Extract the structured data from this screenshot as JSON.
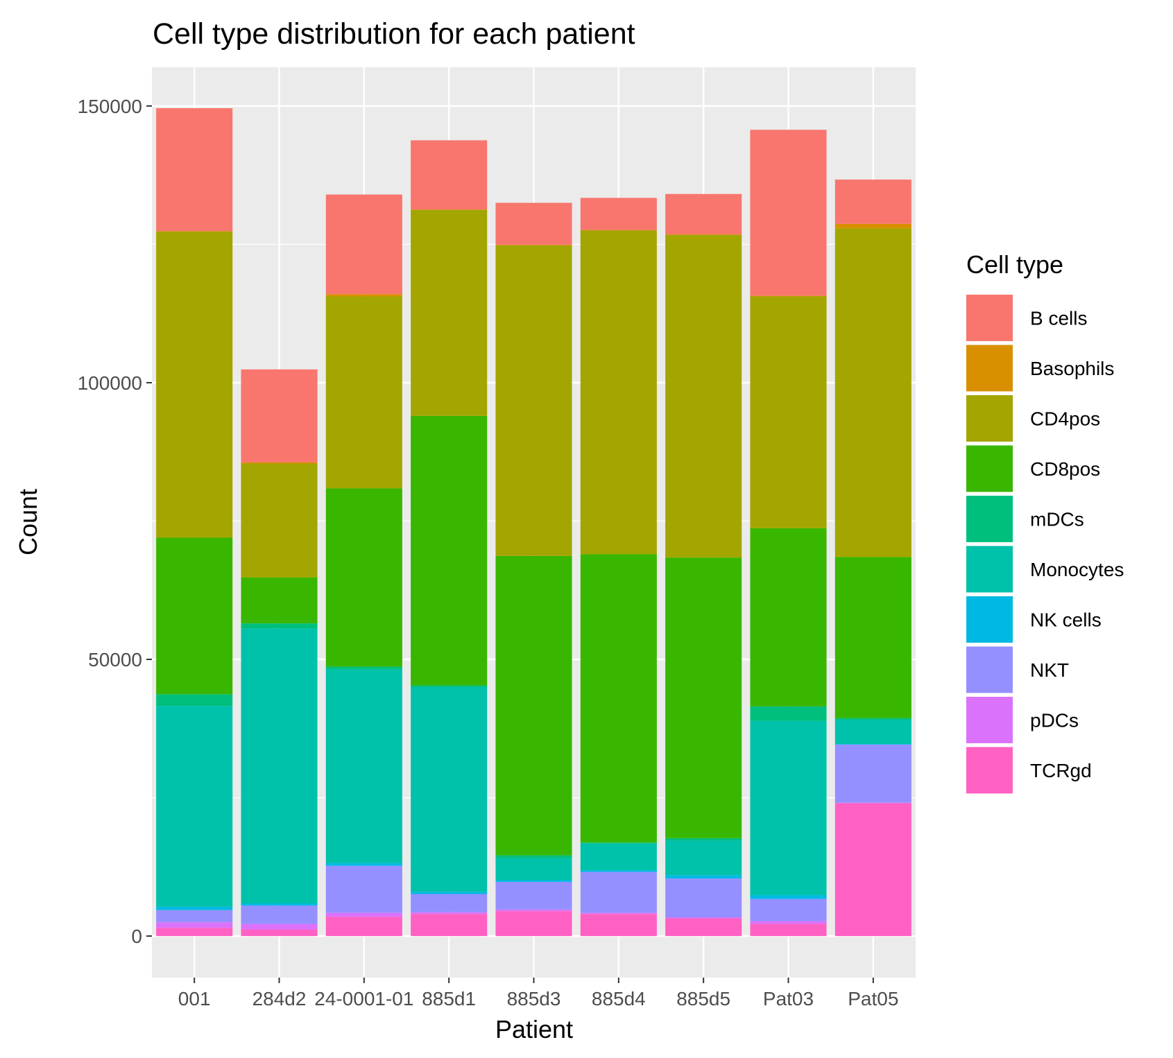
{
  "chart_data": {
    "type": "bar",
    "stacked": true,
    "title": "Cell type distribution for each patient",
    "xlabel": "Patient",
    "ylabel": "Count",
    "ylim": [
      -7500,
      157000
    ],
    "yticks": [
      "0",
      "50000",
      "100000",
      "150000"
    ],
    "ytick_values": [
      0,
      50000,
      100000,
      150000
    ],
    "grid": true,
    "legend_position": "right",
    "legend_title": "Cell type",
    "categories": [
      "001",
      "284d2",
      "24-0001-01",
      "885d1",
      "885d3",
      "885d4",
      "885d5",
      "Pat03",
      "Pat05"
    ],
    "series": [
      {
        "name": "TCRgd",
        "color": "#FF61C3",
        "values": [
          1500,
          1200,
          3500,
          4000,
          4500,
          4000,
          3200,
          2200,
          24000
        ]
      },
      {
        "name": "pDCs",
        "color": "#DB72FB",
        "values": [
          1000,
          1000,
          700,
          300,
          300,
          200,
          200,
          500,
          100
        ]
      },
      {
        "name": "NKT",
        "color": "#9590FF",
        "values": [
          2200,
          3300,
          8500,
          3300,
          5000,
          7400,
          7000,
          4000,
          10500
        ]
      },
      {
        "name": "NK cells",
        "color": "#00B9E3",
        "values": [
          600,
          400,
          500,
          400,
          300,
          300,
          600,
          700,
          100
        ]
      },
      {
        "name": "Monocytes",
        "color": "#00C1A9",
        "values": [
          36300,
          49700,
          35000,
          37000,
          4000,
          4800,
          6300,
          31500,
          4400
        ]
      },
      {
        "name": "mDCs",
        "color": "#00BF7D",
        "values": [
          2100,
          900,
          500,
          300,
          500,
          200,
          400,
          2600,
          300
        ]
      },
      {
        "name": "CD8pos",
        "color": "#39B600",
        "values": [
          28300,
          8300,
          32200,
          48700,
          54100,
          52100,
          50700,
          32200,
          29100
        ]
      },
      {
        "name": "CD4pos",
        "color": "#A3A500",
        "values": [
          55300,
          20600,
          34700,
          37200,
          56100,
          58500,
          58300,
          41900,
          59400
        ]
      },
      {
        "name": "Basophils",
        "color": "#D89000",
        "values": [
          100,
          200,
          400,
          100,
          100,
          100,
          100,
          100,
          800
        ]
      },
      {
        "name": "B cells",
        "color": "#F8766D",
        "values": [
          22200,
          16800,
          18000,
          12500,
          7600,
          5800,
          7300,
          30000,
          8000
        ]
      }
    ]
  }
}
